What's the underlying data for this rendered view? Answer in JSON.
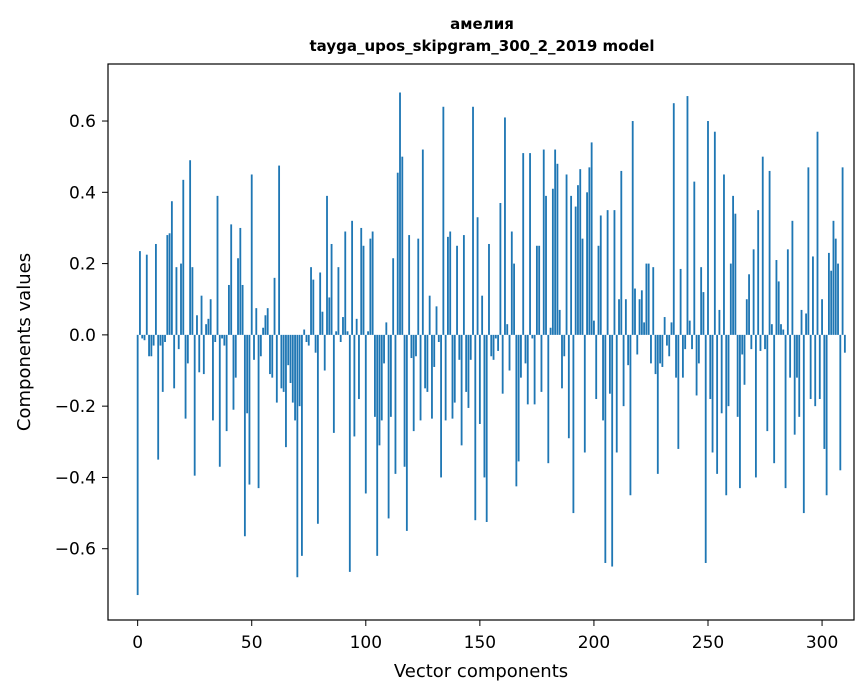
{
  "chart_data": {
    "type": "bar",
    "title": "амелия",
    "subtitle": "tayga_upos_skipgram_300_2_2019 model",
    "xlabel": "Vector components",
    "ylabel": "Components values",
    "xlim": [
      -13,
      314
    ],
    "ylim": [
      -0.8,
      0.76
    ],
    "xticks": [
      0,
      50,
      100,
      150,
      200,
      250,
      300
    ],
    "yticks": [
      -0.6,
      -0.4,
      -0.2,
      0.0,
      0.2,
      0.4,
      0.6
    ],
    "ytick_labels": [
      "−0.6",
      "−0.4",
      "−0.2",
      "0.0",
      "0.2",
      "0.4",
      "0.6"
    ],
    "bar_color": "#1f77b4",
    "values": [
      -0.73,
      0.235,
      -0.01,
      -0.015,
      0.225,
      -0.06,
      -0.06,
      -0.03,
      0.255,
      -0.35,
      -0.03,
      -0.16,
      -0.02,
      0.28,
      0.285,
      0.375,
      -0.15,
      0.19,
      -0.04,
      0.2,
      0.435,
      -0.235,
      -0.08,
      0.49,
      0.19,
      -0.395,
      0.055,
      -0.105,
      0.11,
      -0.11,
      0.03,
      0.045,
      0.1,
      -0.24,
      -0.02,
      0.39,
      -0.37,
      -0.01,
      -0.03,
      -0.27,
      0.14,
      0.31,
      -0.21,
      -0.12,
      0.215,
      0.3,
      0.14,
      -0.565,
      -0.22,
      -0.42,
      0.45,
      -0.07,
      0.075,
      -0.43,
      -0.06,
      0.02,
      0.055,
      0.075,
      -0.11,
      -0.12,
      0.16,
      -0.19,
      0.475,
      -0.15,
      -0.16,
      -0.315,
      -0.085,
      -0.135,
      -0.19,
      -0.24,
      -0.68,
      -0.2,
      -0.62,
      0.015,
      -0.02,
      -0.03,
      0.19,
      0.155,
      -0.05,
      -0.53,
      0.175,
      0.065,
      -0.1,
      0.39,
      0.105,
      0.255,
      -0.275,
      0.01,
      0.19,
      -0.02,
      0.05,
      0.29,
      0.01,
      -0.665,
      0.32,
      -0.285,
      0.045,
      -0.18,
      0.3,
      0.25,
      -0.445,
      0.01,
      0.27,
      0.29,
      -0.23,
      -0.62,
      -0.31,
      -0.24,
      -0.08,
      0.035,
      -0.515,
      -0.23,
      0.215,
      -0.39,
      0.455,
      0.68,
      0.5,
      -0.37,
      -0.55,
      0.28,
      -0.065,
      -0.27,
      -0.06,
      0.27,
      -0.24,
      0.52,
      -0.15,
      -0.16,
      0.11,
      -0.235,
      -0.09,
      0.08,
      -0.02,
      -0.4,
      0.64,
      -0.24,
      0.275,
      0.29,
      -0.235,
      -0.19,
      0.25,
      -0.07,
      -0.31,
      0.28,
      -0.16,
      -0.205,
      -0.07,
      0.64,
      -0.52,
      0.33,
      -0.25,
      0.11,
      -0.4,
      -0.525,
      0.255,
      -0.06,
      -0.07,
      -0.01,
      -0.045,
      0.37,
      -0.165,
      0.61,
      0.03,
      -0.1,
      0.29,
      0.2,
      -0.425,
      -0.355,
      -0.12,
      0.51,
      -0.08,
      -0.195,
      0.51,
      -0.01,
      -0.195,
      0.25,
      0.25,
      -0.16,
      0.52,
      0.39,
      -0.36,
      0.02,
      0.41,
      0.52,
      0.48,
      0.07,
      -0.15,
      -0.06,
      0.45,
      -0.29,
      0.39,
      -0.5,
      0.36,
      0.42,
      0.465,
      0.27,
      -0.33,
      0.4,
      0.47,
      0.54,
      0.04,
      -0.18,
      0.25,
      0.335,
      -0.24,
      -0.64,
      0.35,
      -0.165,
      -0.65,
      0.35,
      -0.33,
      0.1,
      0.46,
      -0.2,
      0.1,
      -0.085,
      -0.45,
      0.6,
      0.13,
      -0.055,
      0.1,
      0.125,
      0.035,
      0.2,
      0.2,
      -0.08,
      0.19,
      -0.11,
      -0.39,
      -0.08,
      -0.09,
      0.05,
      -0.03,
      -0.06,
      0.035,
      0.65,
      -0.12,
      -0.32,
      0.185,
      -0.12,
      -0.04,
      0.67,
      0.04,
      -0.04,
      0.43,
      -0.17,
      -0.08,
      0.19,
      0.12,
      -0.64,
      0.6,
      -0.18,
      -0.33,
      0.57,
      -0.39,
      0.07,
      -0.22,
      0.45,
      -0.45,
      -0.2,
      0.2,
      0.39,
      0.34,
      -0.23,
      -0.43,
      -0.055,
      -0.14,
      0.1,
      0.17,
      -0.04,
      0.24,
      -0.4,
      0.35,
      -0.045,
      0.5,
      -0.04,
      -0.27,
      0.46,
      0.03,
      -0.36,
      0.21,
      0.15,
      0.03,
      0.015,
      -0.43,
      0.24,
      -0.12,
      0.32,
      -0.28,
      -0.12,
      -0.23,
      0.07,
      -0.5,
      0.06,
      0.47,
      -0.18,
      0.22,
      -0.2,
      0.57,
      -0.18,
      0.1,
      -0.32,
      -0.45,
      0.23,
      0.18,
      0.32,
      0.27,
      0.2,
      -0.38,
      0.47,
      -0.05
    ]
  }
}
